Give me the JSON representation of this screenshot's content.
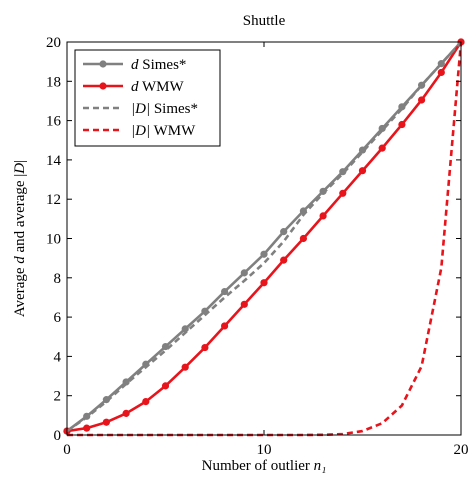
{
  "chart_data": {
    "type": "line",
    "title": "Shuttle",
    "xlabel": "Number of outlier n₁",
    "ylabel": "Average d and average |D|",
    "xlim": [
      0,
      20
    ],
    "ylim": [
      0,
      20
    ],
    "xticks": [
      0,
      10,
      20
    ],
    "yticks": [
      0,
      2,
      4,
      6,
      8,
      10,
      12,
      14,
      16,
      18,
      20
    ],
    "grid": false,
    "legend_position": "top-left",
    "x": [
      0,
      1,
      2,
      3,
      4,
      5,
      6,
      7,
      8,
      9,
      10,
      11,
      12,
      13,
      14,
      15,
      16,
      17,
      18,
      19,
      20
    ],
    "series": [
      {
        "name": "d Simes*",
        "color": "#808080",
        "dash": "solid",
        "markers": true,
        "values": [
          0.2,
          0.95,
          1.8,
          2.7,
          3.6,
          4.5,
          5.4,
          6.3,
          7.3,
          8.25,
          9.2,
          10.35,
          11.4,
          12.4,
          13.4,
          14.5,
          15.6,
          16.7,
          17.8,
          18.9,
          20.0
        ]
      },
      {
        "name": "d WMW",
        "color": "#e8141c",
        "dash": "solid",
        "markers": true,
        "values": [
          0.2,
          0.35,
          0.65,
          1.1,
          1.7,
          2.5,
          3.45,
          4.45,
          5.55,
          6.65,
          7.75,
          8.9,
          10.0,
          11.15,
          12.3,
          13.45,
          14.6,
          15.8,
          17.05,
          18.45,
          20.0
        ]
      },
      {
        "name": "|D| Simes*",
        "color": "#808080",
        "dash": "dashed",
        "markers": false,
        "values": [
          0.2,
          0.9,
          1.7,
          2.6,
          3.45,
          4.3,
          5.2,
          6.1,
          7.0,
          7.85,
          8.75,
          9.85,
          11.2,
          12.3,
          13.3,
          14.4,
          15.5,
          16.6,
          17.8,
          18.9,
          20.0
        ]
      },
      {
        "name": "|D| WMW",
        "color": "#e8141c",
        "dash": "dashed",
        "markers": false,
        "values": [
          0.0,
          0.0,
          0.0,
          0.0,
          0.0,
          0.0,
          0.0,
          0.0,
          0.0,
          0.0,
          0.0,
          0.0,
          0.0,
          0.01,
          0.05,
          0.2,
          0.6,
          1.5,
          3.5,
          8.5,
          20.0
        ]
      }
    ]
  }
}
